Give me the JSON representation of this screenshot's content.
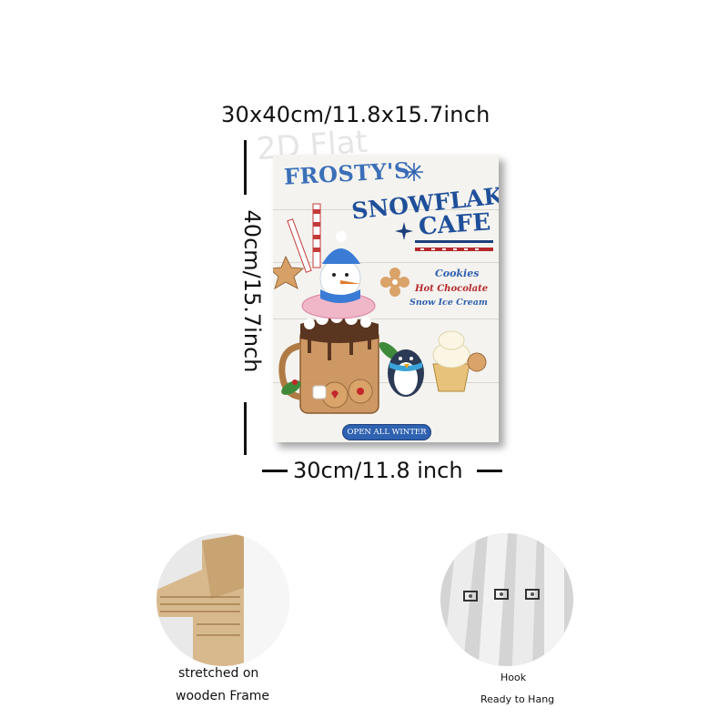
{
  "dimensions": {
    "top_label": "30x40cm/11.8x15.7inch",
    "side_label": "40cm/15.7inch",
    "bottom_label": "30cm/11.8 inch"
  },
  "watermark": "2D Flat",
  "sign": {
    "title_line1": "FROSTY'S",
    "title_line2": "SNOWFLAKE",
    "title_line3": "CAFE",
    "menu": [
      "Cookies",
      "Hot Chocolate",
      "Snow Ice Cream"
    ],
    "badge": "OPEN ALL WINTER"
  },
  "details": {
    "frame_caption_line1": "stretched on",
    "frame_caption_line2": "wooden Frame",
    "hook_caption_line1": "Hook",
    "hook_caption_line2": "Ready to Hang"
  },
  "colors": {
    "sign_blue": "#2f62b0",
    "sign_red": "#b5282b",
    "canvas_background": "#f4f3ef"
  }
}
